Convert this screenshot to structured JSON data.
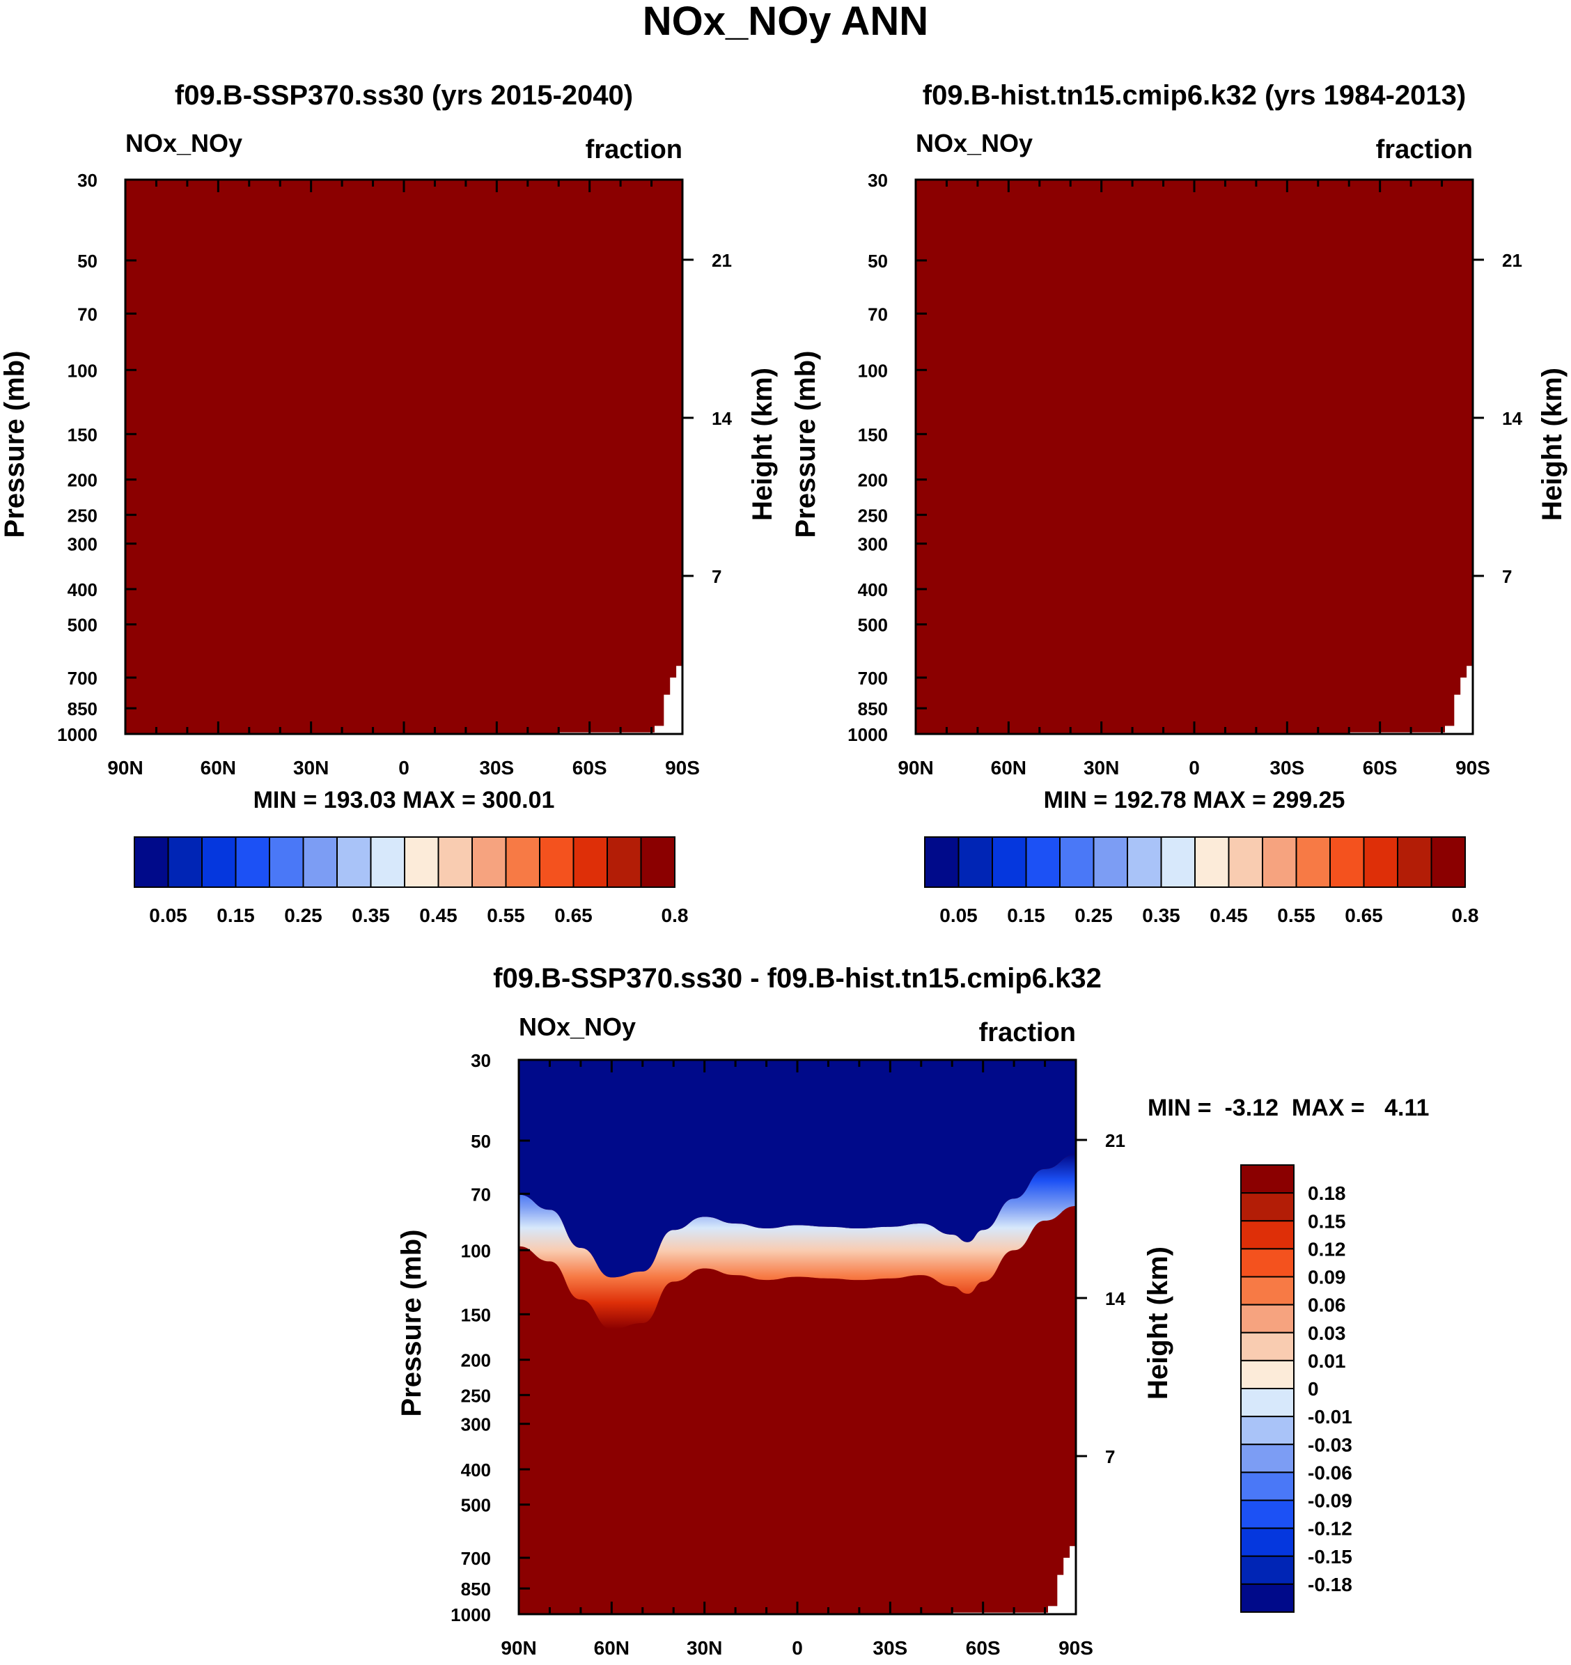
{
  "title": "NOx_NOy ANN",
  "colors": {
    "abs_fill": "#8b0000",
    "abs_levels": [
      "#000a8a",
      "#0025b5",
      "#0537de",
      "#1c51f5",
      "#4a78f7",
      "#7c9df4",
      "#a9c3f8",
      "#d7e8fb",
      "#fcebd9",
      "#f9ccb1",
      "#f6a37f",
      "#f77a45",
      "#f4521e",
      "#de2f08",
      "#b31d06",
      "#8b0000"
    ],
    "diff_levels": [
      "#000a8a",
      "#0025b5",
      "#0537de",
      "#1c51f5",
      "#4a78f7",
      "#7c9df4",
      "#a9c3f8",
      "#d7e8fb",
      "#fcebd9",
      "#f9ccb1",
      "#f6a37f",
      "#f77a45",
      "#f4521e",
      "#de2f08",
      "#b31d06",
      "#8b0000"
    ]
  },
  "chart_data": [
    {
      "type": "heatmap",
      "title": "f09.B-SSP370.ss30 (yrs 2015-2040)",
      "variable": "NOx_NOy",
      "units": "fraction",
      "ylabel": "Pressure (mb)",
      "y2label": "Height (km)",
      "x_ticks": [
        "90N",
        "60N",
        "30N",
        "0",
        "30S",
        "60S",
        "90S"
      ],
      "y_ticks": [
        30,
        50,
        70,
        100,
        150,
        200,
        250,
        300,
        400,
        500,
        700,
        850,
        1000
      ],
      "y2_ticks": [
        21,
        14,
        7
      ],
      "xlim": [
        -90,
        90
      ],
      "ylim": [
        30,
        1000
      ],
      "field": "uniform >= 0.8 (dark red) except missing below surface near 90S",
      "stats": "MIN = 193.03  MAX = 300.01",
      "colorbar_labels": [
        "0.05",
        "0.15",
        "0.25",
        "0.35",
        "0.45",
        "0.55",
        "0.65",
        "0.8"
      ]
    },
    {
      "type": "heatmap",
      "title": "f09.B-hist.tn15.cmip6.k32 (yrs 1984-2013)",
      "variable": "NOx_NOy",
      "units": "fraction",
      "ylabel": "Pressure (mb)",
      "y2label": "Height (km)",
      "x_ticks": [
        "90N",
        "60N",
        "30N",
        "0",
        "30S",
        "60S",
        "90S"
      ],
      "y_ticks": [
        30,
        50,
        70,
        100,
        150,
        200,
        250,
        300,
        400,
        500,
        700,
        850,
        1000
      ],
      "y2_ticks": [
        21,
        14,
        7
      ],
      "xlim": [
        -90,
        90
      ],
      "ylim": [
        30,
        1000
      ],
      "field": "uniform >= 0.8 (dark red) except missing below surface near 90S",
      "stats": "MIN = 192.78  MAX = 299.25",
      "colorbar_labels": [
        "0.05",
        "0.15",
        "0.25",
        "0.35",
        "0.45",
        "0.55",
        "0.65",
        "0.8"
      ]
    },
    {
      "type": "heatmap",
      "title": "f09.B-SSP370.ss30 - f09.B-hist.tn15.cmip6.k32",
      "variable": "NOx_NOy",
      "units": "fraction",
      "ylabel": "Pressure (mb)",
      "y2label": "Height (km)",
      "x_ticks": [
        "90N",
        "60N",
        "30N",
        "0",
        "30S",
        "60S",
        "90S"
      ],
      "y_ticks": [
        30,
        50,
        70,
        100,
        150,
        200,
        250,
        300,
        400,
        500,
        700,
        850,
        1000
      ],
      "y2_ticks": [
        21,
        14,
        7
      ],
      "xlim": [
        -90,
        90
      ],
      "ylim": [
        30,
        1000
      ],
      "stats": "MIN =  -3.12  MAX =   4.11",
      "colorbar_labels": [
        "0.18",
        "0.15",
        "0.12",
        "0.09",
        "0.06",
        "0.03",
        "0.01",
        "0",
        "-0.01",
        "-0.03",
        "-0.06",
        "-0.09",
        "-0.12",
        "-0.15",
        "-0.18"
      ],
      "transition_boundary": {
        "lat": [
          90,
          80,
          70,
          60,
          50,
          40,
          30,
          20,
          10,
          0,
          -10,
          -20,
          -30,
          -40,
          -50,
          -55,
          -60,
          -70,
          -80,
          -90
        ],
        "pressure_mb": [
          80,
          88,
          112,
          135,
          130,
          100,
          92,
          96,
          99,
          97,
          98,
          99,
          98,
          96,
          103,
          108,
          100,
          82,
          68,
          62
        ]
      }
    }
  ]
}
